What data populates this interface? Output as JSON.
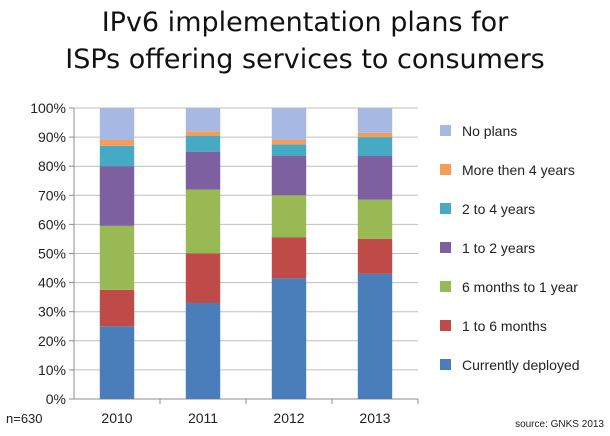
{
  "chart_data": {
    "type": "bar",
    "stacked": true,
    "title_lines": [
      "IPv6 implementation plans for",
      "ISPs offering services to consumers"
    ],
    "categories": [
      "2010",
      "2011",
      "2012",
      "2013"
    ],
    "yticks": [
      "0%",
      "10%",
      "20%",
      "30%",
      "40%",
      "50%",
      "60%",
      "70%",
      "80%",
      "90%",
      "100%"
    ],
    "ylim": [
      0,
      100
    ],
    "grid": true,
    "legend_position": "right",
    "series": [
      {
        "name": "Currently deployed",
        "color": "#4a7ebb",
        "values": [
          25,
          33,
          41.5,
          43
        ]
      },
      {
        "name": "1 to 6 months",
        "color": "#be4b48",
        "values": [
          12.5,
          17,
          14,
          12
        ]
      },
      {
        "name": "6 months to 1 year",
        "color": "#98b954",
        "values": [
          22,
          22,
          14.5,
          13.5
        ]
      },
      {
        "name": "1 to 2 years",
        "color": "#7d60a0",
        "values": [
          20.5,
          13,
          13.5,
          15
        ]
      },
      {
        "name": "2 to 4 years",
        "color": "#46aac4",
        "values": [
          7,
          5.5,
          4,
          6.5
        ]
      },
      {
        "name": "More then 4 years",
        "color": "#f59d56",
        "values": [
          2,
          1.5,
          1.5,
          1.5
        ]
      },
      {
        "name": "No plans",
        "color": "#a7b9e3",
        "values": [
          11,
          8,
          11,
          8.5
        ]
      }
    ]
  },
  "notes": {
    "sample": "n=630",
    "source": "source: GNKS 2013"
  }
}
